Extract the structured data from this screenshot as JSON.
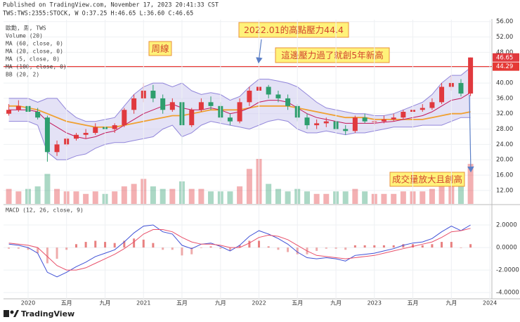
{
  "header": {
    "published": "Published on TradingView.com, November 17, 2023 20:41:33 CST",
    "symbol": "TWS:TWS:2355:STOCK, W O:37.25 H:46.65 L:36.60 C:46.65"
  },
  "footer": {
    "brand": "TradingView"
  },
  "chart_data": [
    {
      "type": "candlestick",
      "legend": [
        "歐勳, 周, TWS",
        "Volume (20)",
        "MA (60, close, 0)",
        "MA (20, close, 0)",
        "MA (5, close, 0)",
        "MA (100, close, 0)",
        "BB (20, 2)"
      ],
      "annotations": [
        "2022.01的高點壓力44.4",
        "周線",
        "這邊壓力過了就創5年新高",
        "成交量放大且創高"
      ],
      "x": [
        2019.833,
        2019.917,
        2020.0,
        2020.083,
        2020.167,
        2020.25,
        2020.333,
        2020.417,
        2020.5,
        2020.583,
        2020.667,
        2020.75,
        2020.833,
        2020.917,
        2021.0,
        2021.083,
        2021.167,
        2021.25,
        2021.333,
        2021.417,
        2021.5,
        2021.583,
        2021.667,
        2021.75,
        2021.833,
        2021.917,
        2022.0,
        2022.083,
        2022.167,
        2022.25,
        2022.333,
        2022.417,
        2022.5,
        2022.583,
        2022.667,
        2022.75,
        2022.833,
        2022.917,
        2023.0,
        2023.083,
        2023.167,
        2023.25,
        2023.333,
        2023.417,
        2023.5,
        2023.583,
        2023.667,
        2023.75,
        2023.833
      ],
      "open": [
        32,
        33,
        34,
        32.5,
        31,
        22,
        24,
        25.5,
        26.5,
        27,
        28.5,
        28,
        29,
        33,
        36,
        38,
        36,
        33,
        35,
        29,
        33,
        35,
        34,
        31,
        30,
        35,
        38,
        39,
        37,
        36,
        34,
        31,
        29,
        29.5,
        30,
        28,
        27.5,
        31,
        30,
        30,
        30.5,
        31,
        32.5,
        33,
        33.5,
        35,
        39,
        40,
        37.25
      ],
      "high": [
        34.5,
        35.5,
        35,
        33.5,
        31.5,
        25,
        26,
        27,
        28,
        29.5,
        30,
        29.5,
        33.5,
        37,
        40,
        39.5,
        37,
        36,
        36,
        33.5,
        36,
        36.5,
        35,
        32,
        36,
        39,
        44.4,
        39.5,
        38,
        37,
        34.5,
        32,
        30.5,
        31,
        31,
        29,
        31.5,
        32,
        31,
        31.5,
        32,
        33,
        34,
        34.5,
        36,
        40,
        42,
        41,
        46.65
      ],
      "low": [
        31.5,
        32.5,
        31.5,
        30.5,
        19.5,
        21,
        23.5,
        25,
        25.5,
        26.5,
        27,
        27,
        28.5,
        32,
        35,
        35,
        32,
        32.5,
        24,
        28.5,
        32.5,
        33,
        30,
        29,
        29.5,
        34,
        37,
        36,
        35,
        33,
        30,
        28,
        28,
        28.5,
        27.5,
        26.5,
        27,
        29.5,
        29,
        29.5,
        30,
        30.5,
        32,
        32.5,
        33,
        34.5,
        38,
        36.5,
        36.6
      ],
      "close": [
        33,
        34,
        32.5,
        31,
        22,
        24,
        25.5,
        26.5,
        27,
        28.5,
        28,
        29,
        33,
        36,
        38,
        36,
        33,
        35,
        29,
        33,
        35,
        34,
        31,
        30,
        35,
        38,
        39,
        37,
        36,
        34,
        31,
        29,
        29.5,
        30,
        28,
        27.5,
        31,
        30,
        30,
        30.5,
        31,
        32.5,
        33,
        33.5,
        35,
        39,
        40,
        37.25,
        46.65
      ],
      "volume": [
        3,
        2.5,
        3,
        3.5,
        6,
        3,
        2.5,
        2.5,
        2,
        2.5,
        2,
        2.5,
        3.5,
        4,
        5,
        3.5,
        3,
        3,
        4.5,
        3,
        3,
        2.5,
        2.5,
        2.5,
        3.5,
        7,
        9,
        4,
        3,
        2.5,
        3,
        2.5,
        2,
        2,
        2.5,
        2.5,
        3,
        2.5,
        2,
        2,
        2,
        2.5,
        2.5,
        2.5,
        3,
        4.5,
        5,
        4,
        8
      ],
      "up_color": "#e0393e",
      "down_color": "#2e9e6e",
      "band_color": "#c9c5ee",
      "series": [
        {
          "color": "#f0a030",
          "values": [
            34,
            34,
            33.5,
            33,
            32,
            31,
            30,
            29.5,
            29,
            28.5,
            28.5,
            28.5,
            29,
            29.5,
            30,
            30.5,
            31,
            31.5,
            31.5,
            32,
            32.5,
            33,
            33,
            33,
            33,
            33.5,
            34,
            34,
            34,
            34,
            33.5,
            33,
            32.5,
            32,
            31.5,
            31,
            31,
            31,
            30.5,
            30.5,
            30.5,
            30.5,
            30.5,
            30.5,
            31,
            31.5,
            32,
            32,
            32.5
          ]
        },
        {
          "color": "#c2185b",
          "values": [
            33,
            33,
            33,
            32.5,
            30,
            28.5,
            27,
            26,
            25.5,
            26,
            27,
            27.5,
            29,
            30.5,
            32,
            33,
            34,
            34.5,
            33.5,
            33,
            33,
            33.5,
            33,
            32,
            32.5,
            33.5,
            35,
            35.5,
            35.5,
            35,
            33.5,
            32,
            31,
            30.5,
            30,
            29.5,
            29.5,
            29.5,
            29.5,
            29.8,
            30,
            30.5,
            31,
            31.5,
            32.5,
            34,
            35.5,
            36,
            37.5
          ]
        },
        {
          "color": "#6a5acd",
          "values": [
            36,
            36,
            36,
            35,
            36,
            36,
            33,
            31,
            30,
            30,
            30.5,
            31,
            34,
            37,
            39,
            40,
            40,
            39,
            40,
            38,
            37,
            37.5,
            37,
            35.5,
            36.5,
            39,
            41,
            41,
            40.5,
            40,
            39,
            37,
            35,
            33.5,
            33,
            32.5,
            32,
            32,
            31.5,
            31.5,
            32,
            33,
            34,
            35,
            37,
            40,
            42,
            42,
            44
          ]
        },
        {
          "color": "#6a5acd",
          "values": [
            30,
            30,
            30,
            29,
            22,
            20,
            20,
            21,
            21.5,
            23,
            24,
            24.5,
            24.5,
            25,
            25.5,
            26,
            28,
            29,
            26,
            27,
            29,
            30,
            29.5,
            29,
            28.5,
            28,
            29,
            30,
            30.5,
            30,
            28,
            27,
            27,
            27.5,
            27,
            26.5,
            27,
            27,
            27.5,
            28,
            28.5,
            28.5,
            28.5,
            29,
            29,
            29,
            30,
            31,
            31
          ]
        }
      ],
      "hline": {
        "value": 44.29,
        "color": "#e53935"
      },
      "xlim": [
        2019.787,
        2024.018
      ],
      "ylim": [
        8.5,
        56.5
      ],
      "yticks": [
        {
          "value": 12,
          "label": "12.00"
        },
        {
          "value": 16,
          "label": "16.00"
        },
        {
          "value": 20,
          "label": "20.00"
        },
        {
          "value": 24,
          "label": "24.00"
        },
        {
          "value": 28,
          "label": "28.00"
        },
        {
          "value": 32,
          "label": "32.00"
        },
        {
          "value": 36,
          "label": "36.00"
        },
        {
          "value": 40,
          "label": "40.00"
        },
        {
          "value": 44,
          "label": "44.00"
        },
        {
          "value": 48,
          "label": "48.00"
        },
        {
          "value": 52,
          "label": "52.00"
        },
        {
          "value": 56,
          "label": "56.00"
        }
      ],
      "grid": true
    },
    {
      "type": "macd",
      "title": "MACD (12, 26, close, 9)",
      "x": [
        2019.833,
        2019.917,
        2020.0,
        2020.083,
        2020.167,
        2020.25,
        2020.333,
        2020.417,
        2020.5,
        2020.583,
        2020.667,
        2020.75,
        2020.833,
        2020.917,
        2021.0,
        2021.083,
        2021.167,
        2021.25,
        2021.333,
        2021.417,
        2021.5,
        2021.583,
        2021.667,
        2021.75,
        2021.833,
        2021.917,
        2022.0,
        2022.083,
        2022.167,
        2022.25,
        2022.333,
        2022.417,
        2022.5,
        2022.583,
        2022.667,
        2022.75,
        2022.833,
        2022.917,
        2023.0,
        2023.083,
        2023.167,
        2023.25,
        2023.333,
        2023.417,
        2023.5,
        2023.583,
        2023.667,
        2023.75,
        2023.833
      ],
      "series": [
        {
          "color": "#3f51d6",
          "values": [
            0.3,
            0.2,
            0,
            -0.5,
            -2.2,
            -2.6,
            -2.2,
            -1.7,
            -1.3,
            -0.8,
            -0.5,
            -0.2,
            0.5,
            1.3,
            1.9,
            2.0,
            1.4,
            1.2,
            0.2,
            -0.1,
            0.3,
            0.4,
            0.1,
            -0.3,
            0.2,
            1.0,
            1.5,
            1.2,
            0.8,
            0.3,
            -0.4,
            -0.9,
            -1.0,
            -0.9,
            -1.0,
            -1.2,
            -0.7,
            -0.6,
            -0.5,
            -0.3,
            -0.1,
            0.2,
            0.4,
            0.5,
            0.8,
            1.4,
            1.9,
            1.5,
            2.0
          ]
        },
        {
          "color": "#e8506a",
          "values": [
            0.4,
            0.3,
            0.2,
            0,
            -0.8,
            -1.6,
            -2.0,
            -2.0,
            -1.8,
            -1.4,
            -1.0,
            -0.6,
            -0.1,
            0.5,
            1.2,
            1.6,
            1.6,
            1.4,
            0.9,
            0.5,
            0.3,
            0.3,
            0.2,
            0,
            0,
            0.4,
            0.9,
            1.1,
            1.0,
            0.7,
            0.2,
            -0.3,
            -0.7,
            -0.8,
            -0.9,
            -1.0,
            -0.9,
            -0.8,
            -0.7,
            -0.5,
            -0.3,
            -0.1,
            0.1,
            0.3,
            0.5,
            0.9,
            1.4,
            1.5,
            1.7
          ]
        }
      ],
      "histogram": {
        "color": "#e57373",
        "values": [
          -0.1,
          -0.1,
          -0.2,
          -0.5,
          -1.4,
          -1.0,
          -0.2,
          0.3,
          0.5,
          0.6,
          0.5,
          0.4,
          0.6,
          0.8,
          0.7,
          0.4,
          -0.2,
          -0.2,
          -0.7,
          -0.6,
          0,
          0.1,
          -0.1,
          -0.3,
          0.2,
          0.6,
          0.6,
          0.1,
          -0.2,
          -0.4,
          -0.6,
          -0.6,
          -0.3,
          -0.1,
          -0.1,
          -0.2,
          0.2,
          0.2,
          0.2,
          0.2,
          0.2,
          0.3,
          0.3,
          0.2,
          0.3,
          0.5,
          0.5,
          0,
          0.3
        ]
      },
      "xlim": [
        2019.787,
        2024.018
      ],
      "ylim": [
        -4.55,
        3.75
      ],
      "yticks": [
        {
          "value": 2,
          "label": "2.0000"
        },
        {
          "value": 0,
          "label": "0.0000"
        },
        {
          "value": -2,
          "label": "-2.0000"
        },
        {
          "value": -4,
          "label": "-4.0000"
        }
      ],
      "xticks": [
        {
          "value": 2020,
          "label": "2020"
        },
        {
          "value": 2020.333,
          "label": "五月"
        },
        {
          "value": 2020.667,
          "label": "九月"
        },
        {
          "value": 2021,
          "label": "2021"
        },
        {
          "value": 2021.333,
          "label": "五月"
        },
        {
          "value": 2021.667,
          "label": "九月"
        },
        {
          "value": 2022,
          "label": "2022"
        },
        {
          "value": 2022.333,
          "label": "五月"
        },
        {
          "value": 2022.667,
          "label": "九月"
        },
        {
          "value": 2023,
          "label": "2023"
        },
        {
          "value": 2023.333,
          "label": "五月"
        },
        {
          "value": 2023.667,
          "label": "九月"
        },
        {
          "value": 2024,
          "label": "2024"
        }
      ],
      "grid": true
    }
  ]
}
